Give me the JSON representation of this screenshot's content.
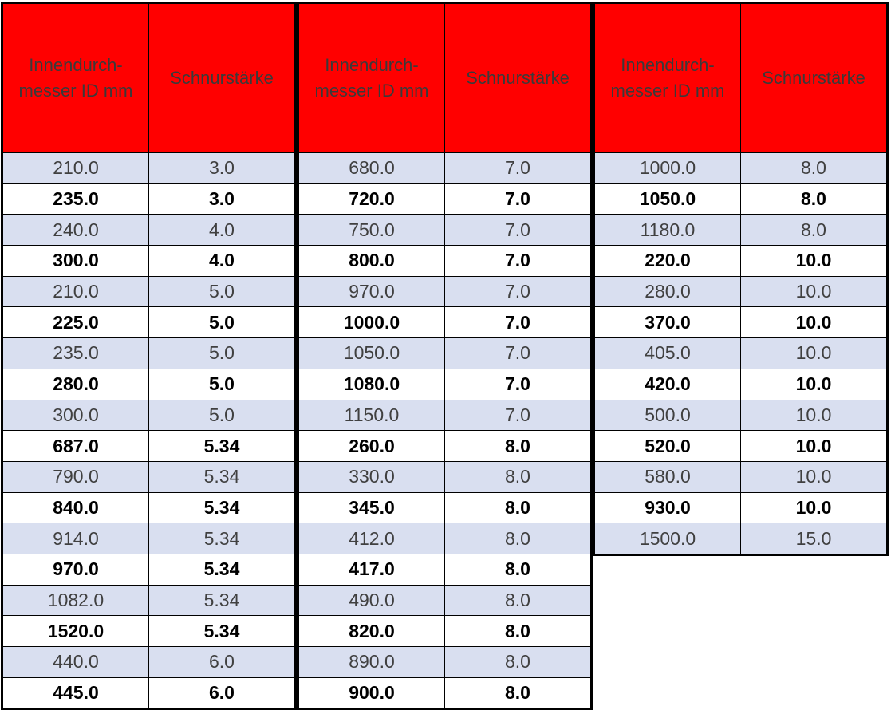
{
  "tables": [
    {
      "header": [
        "Innendurch-messer ID mm",
        "Schnurstärke"
      ],
      "rows": [
        [
          "210.0",
          "3.0"
        ],
        [
          "235.0",
          "3.0"
        ],
        [
          "240.0",
          "4.0"
        ],
        [
          "300.0",
          "4.0"
        ],
        [
          "210.0",
          "5.0"
        ],
        [
          "225.0",
          "5.0"
        ],
        [
          "235.0",
          "5.0"
        ],
        [
          "280.0",
          "5.0"
        ],
        [
          "300.0",
          "5.0"
        ],
        [
          "687.0",
          "5.34"
        ],
        [
          "790.0",
          "5.34"
        ],
        [
          "840.0",
          "5.34"
        ],
        [
          "914.0",
          "5.34"
        ],
        [
          "970.0",
          "5.34"
        ],
        [
          "1082.0",
          "5.34"
        ],
        [
          "1520.0",
          "5.34"
        ],
        [
          "440.0",
          "6.0"
        ],
        [
          "445.0",
          "6.0"
        ]
      ]
    },
    {
      "header": [
        "Innendurch-messer ID mm",
        "Schnurstärke"
      ],
      "rows": [
        [
          "680.0",
          "7.0"
        ],
        [
          "720.0",
          "7.0"
        ],
        [
          "750.0",
          "7.0"
        ],
        [
          "800.0",
          "7.0"
        ],
        [
          "970.0",
          "7.0"
        ],
        [
          "1000.0",
          "7.0"
        ],
        [
          "1050.0",
          "7.0"
        ],
        [
          "1080.0",
          "7.0"
        ],
        [
          "1150.0",
          "7.0"
        ],
        [
          "260.0",
          "8.0"
        ],
        [
          "330.0",
          "8.0"
        ],
        [
          "345.0",
          "8.0"
        ],
        [
          "412.0",
          "8.0"
        ],
        [
          "417.0",
          "8.0"
        ],
        [
          "490.0",
          "8.0"
        ],
        [
          "820.0",
          "8.0"
        ],
        [
          "890.0",
          "8.0"
        ],
        [
          "900.0",
          "8.0"
        ]
      ]
    },
    {
      "header": [
        "Innendurch-messer ID mm",
        "Schnurstärke"
      ],
      "rows": [
        [
          "1000.0",
          "8.0"
        ],
        [
          "1050.0",
          "8.0"
        ],
        [
          "1180.0",
          "8.0"
        ],
        [
          "220.0",
          "10.0"
        ],
        [
          "280.0",
          "10.0"
        ],
        [
          "370.0",
          "10.0"
        ],
        [
          "405.0",
          "10.0"
        ],
        [
          "420.0",
          "10.0"
        ],
        [
          "500.0",
          "10.0"
        ],
        [
          "520.0",
          "10.0"
        ],
        [
          "580.0",
          "10.0"
        ],
        [
          "930.0",
          "10.0"
        ],
        [
          "1500.0",
          "15.0"
        ]
      ]
    }
  ]
}
